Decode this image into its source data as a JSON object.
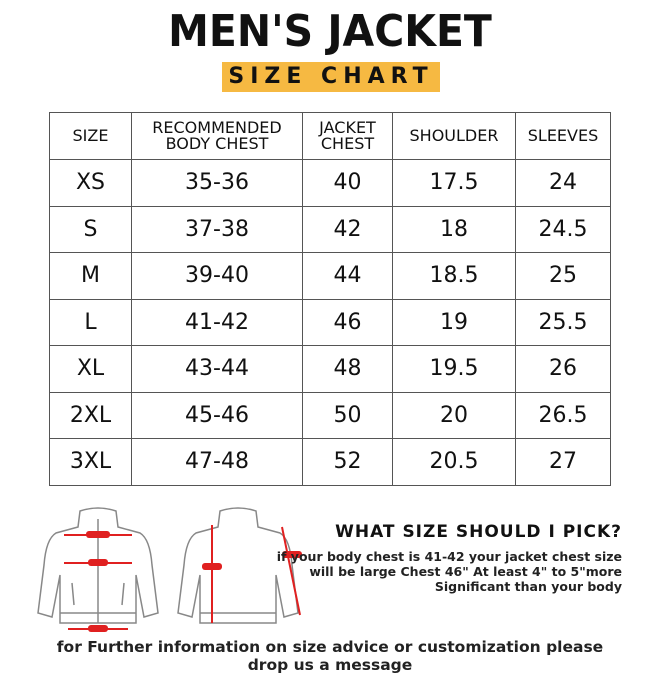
{
  "title": "MEN'S JACKET",
  "subtitle": "SIZE CHART",
  "accent": "#f6b942",
  "table": {
    "headers": [
      "SIZE",
      "RECOMMENDED BODY CHEST",
      "JACKET CHEST",
      "SHOULDER",
      "SLEEVES"
    ],
    "rows": [
      [
        "XS",
        "35-36",
        "40",
        "17.5",
        "24"
      ],
      [
        "S",
        "37-38",
        "42",
        "18",
        "24.5"
      ],
      [
        "M",
        "39-40",
        "44",
        "18.5",
        "25"
      ],
      [
        "L",
        "41-42",
        "46",
        "19",
        "25.5"
      ],
      [
        "XL",
        "43-44",
        "48",
        "19.5",
        "26"
      ],
      [
        "2XL",
        "45-46",
        "50",
        "20",
        "26.5"
      ],
      [
        "3XL",
        "47-48",
        "52",
        "20.5",
        "27"
      ]
    ]
  },
  "advice": {
    "question": "WHAT SIZE SHOULD I PICK?",
    "lines": [
      "if your body chest is 41-42 your jacket chest size",
      "will be large Chest 46\" At least 4\" to 5\"more",
      "Significant than your body"
    ]
  },
  "footer": [
    "for Further information on size advice or customization please",
    "drop us a message"
  ]
}
